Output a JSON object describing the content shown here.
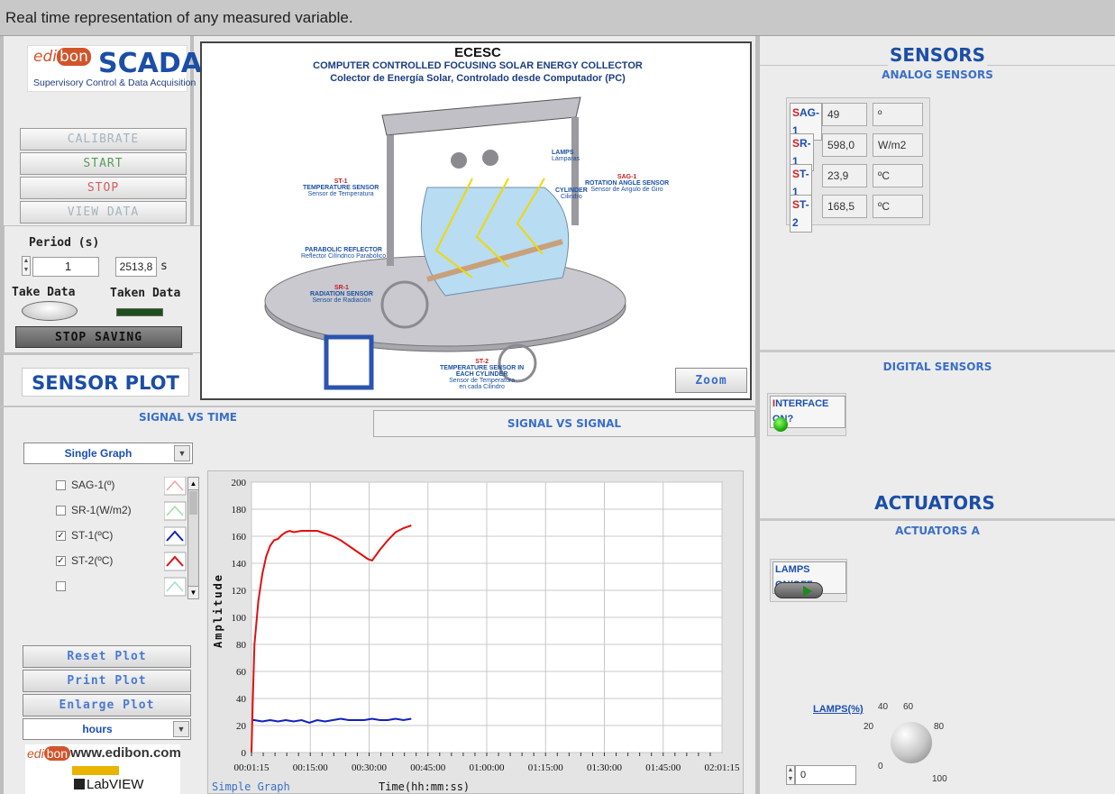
{
  "header": {
    "caption": "Real time representation of any measured variable."
  },
  "logo": {
    "edi": "edi",
    "bon": "bon",
    "scada": "SCADA",
    "subtitle": "Supervisory Control & Data Acquisition"
  },
  "controls": {
    "calibrate": "CALIBRATE",
    "start": "START",
    "stop": "STOP",
    "view_data": "VIEW DATA"
  },
  "saving": {
    "period_label": "Period (s)",
    "period_value": "1",
    "elapsed_value": "2513,8",
    "elapsed_unit": "s",
    "take_data": "Take Data",
    "taken_data": "Taken Data",
    "stop_saving": "STOP SAVING"
  },
  "diagram": {
    "title": "ECESC",
    "subtitle_en": "COMPUTER CONTROLLED FOCUSING SOLAR ENERGY COLLECTOR",
    "subtitle_es": "Colector de Energía Solar, Controlado desde Computador (PC)",
    "labels": {
      "lamps": "LAMPS",
      "lamps_es": "Lámparas",
      "st1": "ST-1",
      "st1_en": "TEMPERATURE SENSOR",
      "st1_es": "Sensor de Temperatura",
      "sag1": "SAG-1",
      "sag1_en": "ROTATION ANGLE SENSOR",
      "sag1_es": "Sensor de Angulo de Giro",
      "cyl": "CYLINDER",
      "cyl_es": "Cilindro",
      "par": "PARABOLIC REFLECTOR",
      "par_es": "Reflector Cilíndrico Parabólico",
      "sr1": "SR-1",
      "sr1_en": "RADIATION SENSOR",
      "sr1_es": "Sensor de Radiación",
      "st2": "ST-2",
      "st2_en": "TEMPERATURE SENSOR IN",
      "st2_en2": "EACH CYLINDER",
      "st2_es": "Sensor de Temperatura",
      "st2_es2": "en cada Cilindro"
    },
    "zoom": "Zoom"
  },
  "sensors": {
    "title": "SENSORS",
    "analog_title": "ANALOG SENSORS",
    "items": [
      {
        "tag_first": "S",
        "tag_rest": "AG-1",
        "value": "49",
        "unit": "º"
      },
      {
        "tag_first": "S",
        "tag_rest": "R-1",
        "value": "598,0",
        "unit": "W/m2"
      },
      {
        "tag_first": "S",
        "tag_rest": "T-1",
        "value": "23,9",
        "unit": "ºC"
      },
      {
        "tag_first": "S",
        "tag_rest": "T-2",
        "value": "168,5",
        "unit": "ºC"
      }
    ],
    "digital_title": "DIGITAL SENSORS",
    "interface_first": "I",
    "interface_rest": "NTERFACE ON?"
  },
  "actuators": {
    "title": "ACTUATORS",
    "a_title": "ACTUATORS A",
    "lamps_onoff": "LAMPS ON/OFF",
    "lamps_pct": "LAMPS(%)",
    "lamps_value": "0",
    "knob_ticks": [
      "0",
      "20",
      "40",
      "60",
      "80",
      "100"
    ]
  },
  "plot": {
    "title": "SENSOR PLOT",
    "tab_time": "SIGNAL VS TIME",
    "tab_signal": "SIGNAL VS SIGNAL",
    "mode": "Single Graph",
    "legend": [
      {
        "name": "SAG-1(º)",
        "checked": false,
        "color": "#f0a0a8"
      },
      {
        "name": "SR-1(W/m2)",
        "checked": false,
        "color": "#9fe09f"
      },
      {
        "name": "ST-1(ºC)",
        "checked": true,
        "color": "#1020c0"
      },
      {
        "name": "ST-2(ºC)",
        "checked": true,
        "color": "#e01010"
      },
      {
        "name": "",
        "checked": false,
        "color": "#a0dcd0"
      }
    ],
    "reset": "Reset Plot",
    "print": "Print Plot",
    "enlarge": "Enlarge Plot",
    "units": "hours",
    "graph_name": "Simple Graph",
    "xlabel": "Time(hh:mm:ss)",
    "ylabel": "Amplitude"
  },
  "footer": {
    "web": "www.edibon.com",
    "labview": "LabVIEW"
  },
  "chart_data": {
    "type": "line",
    "xlabel": "Time(hh:mm:ss)",
    "ylabel": "Amplitude",
    "ylim": [
      0,
      200
    ],
    "x_ticks": [
      "00:01:15",
      "00:15:00",
      "00:30:00",
      "00:45:00",
      "01:00:00",
      "01:15:00",
      "01:30:00",
      "01:45:00",
      "02:01:15"
    ],
    "y_ticks": [
      0,
      20,
      40,
      60,
      80,
      100,
      120,
      140,
      160,
      180,
      200
    ],
    "grid": true,
    "x_minutes_range": [
      1.25,
      121.25
    ],
    "series": [
      {
        "name": "ST-1(ºC)",
        "color": "#1020c0",
        "x": [
          1.25,
          2,
          4,
          6,
          8,
          10,
          12,
          14,
          16,
          18,
          20,
          22,
          24,
          26,
          28,
          30,
          32,
          34,
          36,
          38,
          40,
          42
        ],
        "y": [
          24,
          24,
          23,
          24,
          23,
          24,
          23,
          24,
          22,
          24,
          23,
          24,
          25,
          24,
          24,
          24,
          25,
          24,
          24,
          25,
          24,
          25
        ]
      },
      {
        "name": "ST-2(ºC)",
        "color": "#e01010",
        "x": [
          1.25,
          1.6,
          2,
          3,
          4,
          5,
          6,
          7,
          8,
          9,
          10,
          11,
          12,
          14,
          16,
          18,
          20,
          22,
          24,
          26,
          28,
          30,
          31,
          32,
          34,
          36,
          38,
          40,
          42
        ],
        "y": [
          0,
          40,
          80,
          112,
          132,
          145,
          153,
          157,
          158,
          161,
          163,
          164,
          163,
          164,
          164,
          164,
          162,
          160,
          157,
          153,
          149,
          145,
          143,
          142,
          150,
          157,
          163,
          166,
          168
        ]
      }
    ]
  }
}
